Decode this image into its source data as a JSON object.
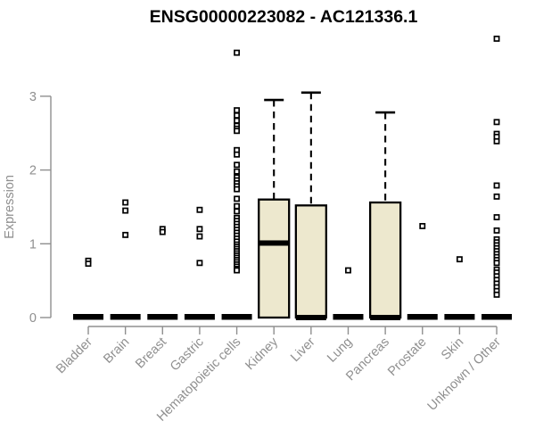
{
  "chart_data": {
    "type": "boxplot",
    "title": "ENSG00000223082 - AC121336.1",
    "ylabel": "Expression",
    "xlabel": "",
    "yticks": [
      0,
      1,
      2,
      3
    ],
    "ylim": [
      0,
      3.9
    ],
    "grid": false,
    "legend": "none",
    "colors": {
      "box_fill": "#EDE8CE",
      "box_stroke": "#000000",
      "median": "#000000",
      "axis": "#8F8F8F",
      "tick_label": "#8F8F8F",
      "title": "#000000",
      "background": "#FFFFFF"
    },
    "categories": [
      "Bladder",
      "Brain",
      "Breast",
      "Gastric",
      "Hematopoietic cells",
      "Kidney",
      "Liver",
      "Lung",
      "Pancreas",
      "Prostate",
      "Skin",
      "Unknown / Other"
    ],
    "series": [
      {
        "label": "Bladder",
        "q1": 0,
        "median": 0,
        "q3": 0,
        "whisker_high": 0,
        "outliers": [
          0.77,
          0.73
        ]
      },
      {
        "label": "Brain",
        "q1": 0,
        "median": 0,
        "q3": 0,
        "whisker_high": 0,
        "outliers": [
          1.56,
          1.45,
          1.12
        ]
      },
      {
        "label": "Breast",
        "q1": 0,
        "median": 0,
        "q3": 0,
        "whisker_high": 0,
        "outliers": [
          1.2,
          1.16
        ]
      },
      {
        "label": "Gastric",
        "q1": 0,
        "median": 0,
        "q3": 0,
        "whisker_high": 0,
        "outliers": [
          1.46,
          1.2,
          1.1,
          0.74
        ]
      },
      {
        "label": "Hematopoietic cells",
        "q1": 0,
        "median": 0,
        "q3": 0,
        "whisker_high": 0,
        "outliers": [
          3.59,
          2.81,
          2.74,
          2.67,
          2.6,
          2.56,
          2.53,
          2.27,
          2.21,
          2.07,
          1.98,
          1.9,
          1.86,
          1.82,
          1.78,
          1.74,
          1.61,
          1.51,
          1.44,
          1.35,
          1.31,
          1.27,
          1.23,
          1.19,
          1.15,
          1.11,
          1.07,
          1.03,
          0.99,
          0.96,
          0.93,
          0.9,
          0.87,
          0.84,
          0.81,
          0.78,
          0.75,
          0.72,
          0.69,
          0.66,
          0.64
        ]
      },
      {
        "label": "Kidney",
        "q1": 0,
        "median": 1.01,
        "q3": 1.6,
        "whisker_high": 2.95,
        "outliers": []
      },
      {
        "label": "Liver",
        "q1": 0,
        "median": 0,
        "q3": 1.52,
        "whisker_high": 3.05,
        "outliers": []
      },
      {
        "label": "Lung",
        "q1": 0,
        "median": 0,
        "q3": 0,
        "whisker_high": 0,
        "outliers": [
          0.64
        ]
      },
      {
        "label": "Pancreas",
        "q1": 0,
        "median": 0,
        "q3": 1.56,
        "whisker_high": 2.78,
        "outliers": []
      },
      {
        "label": "Prostate",
        "q1": 0,
        "median": 0,
        "q3": 0,
        "whisker_high": 0,
        "outliers": [
          1.24
        ]
      },
      {
        "label": "Skin",
        "q1": 0,
        "median": 0,
        "q3": 0,
        "whisker_high": 0,
        "outliers": [
          0.79
        ]
      },
      {
        "label": "Unknown / Other",
        "q1": 0,
        "median": 0,
        "q3": 0,
        "whisker_high": 0,
        "outliers": [
          3.78,
          2.65,
          2.49,
          2.45,
          2.39,
          1.79,
          1.64,
          1.36,
          1.18,
          1.06,
          1.02,
          0.98,
          0.94,
          0.9,
          0.86,
          0.82,
          0.78,
          0.74,
          0.65,
          0.61,
          0.56,
          0.51,
          0.46,
          0.41,
          0.36,
          0.31
        ]
      }
    ]
  }
}
